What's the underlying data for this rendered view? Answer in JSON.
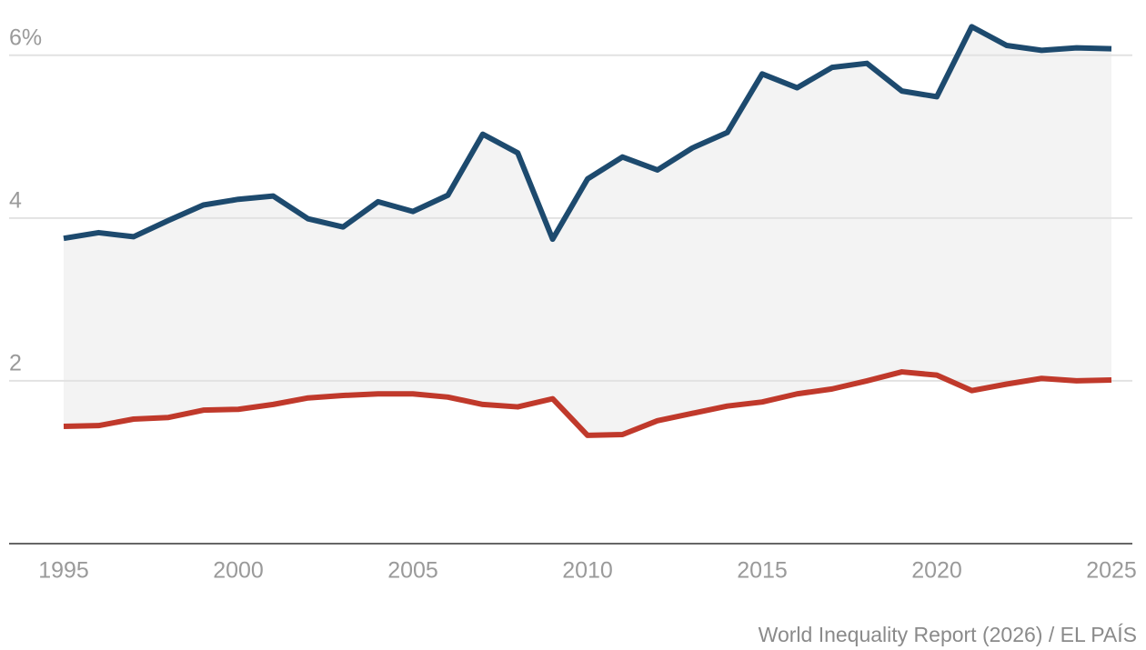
{
  "chart_data": {
    "type": "line",
    "source": "World Inequality Report (2026) / EL PAÍS",
    "x": [
      1995,
      1996,
      1997,
      1998,
      1999,
      2000,
      2001,
      2002,
      2003,
      2004,
      2005,
      2006,
      2007,
      2008,
      2009,
      2010,
      2011,
      2012,
      2013,
      2014,
      2015,
      2016,
      2017,
      2018,
      2019,
      2020,
      2021,
      2022,
      2023,
      2024,
      2025
    ],
    "series": [
      {
        "color": "#1d4a6e",
        "values": [
          3.75,
          3.82,
          3.77,
          3.97,
          4.16,
          4.23,
          4.27,
          3.99,
          3.89,
          4.2,
          4.08,
          4.28,
          5.03,
          4.8,
          3.74,
          4.48,
          4.75,
          4.59,
          4.86,
          5.05,
          5.77,
          5.6,
          5.85,
          5.9,
          5.56,
          5.49,
          6.35,
          6.12,
          6.06,
          6.09,
          6.08
        ]
      },
      {
        "color": "#c0392b",
        "values": [
          1.44,
          1.45,
          1.53,
          1.55,
          1.64,
          1.65,
          1.71,
          1.79,
          1.82,
          1.84,
          1.84,
          1.8,
          1.71,
          1.68,
          1.78,
          1.33,
          1.34,
          1.51,
          1.6,
          1.69,
          1.74,
          1.84,
          1.9,
          2.0,
          2.11,
          2.07,
          1.88,
          1.96,
          2.03,
          2.0,
          2.01
        ]
      }
    ],
    "fill_between": true,
    "fill_color": "#f3f3f3",
    "xlim": [
      1995,
      2025
    ],
    "xticks": [
      1995,
      2000,
      2005,
      2010,
      2015,
      2020,
      2025
    ],
    "ylim": [
      0,
      6.6
    ],
    "yticks": [
      2,
      4,
      {
        "value": 6,
        "label": "6%"
      }
    ],
    "grid": true
  }
}
